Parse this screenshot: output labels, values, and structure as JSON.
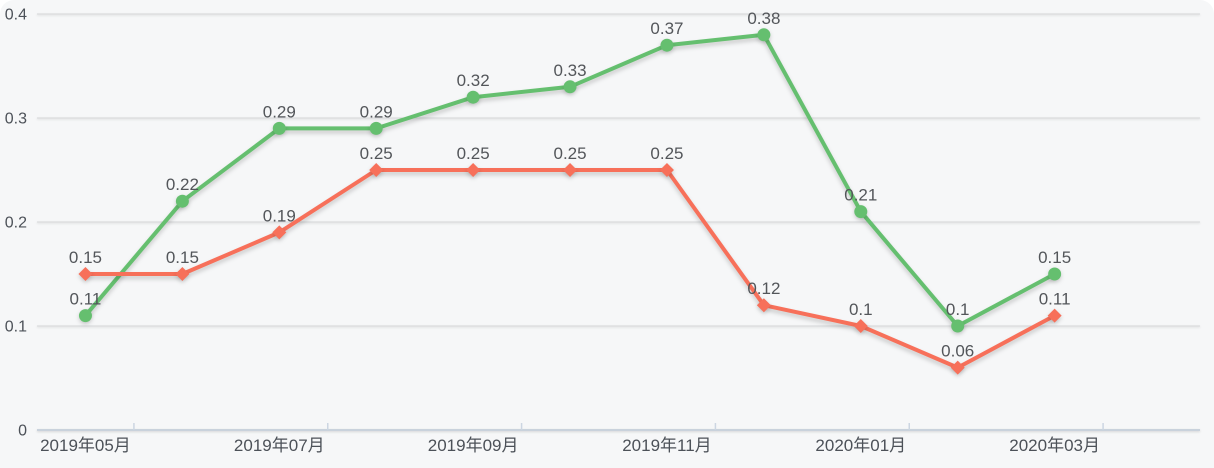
{
  "chart_data": {
    "type": "line",
    "title": "",
    "legend": "none",
    "grid": true,
    "data_labels": true,
    "categories": [
      "2019年05月",
      "2019年06月",
      "2019年07月",
      "2019年08月",
      "2019年09月",
      "2019年10月",
      "2019年11月",
      "2019年12月",
      "2020年01月",
      "2020年02月",
      "2020年03月"
    ],
    "x_axis": {
      "visible_tick_labels": [
        "2019年05月",
        "2019年07月",
        "2019年09月",
        "2019年11月",
        "2020年01月",
        "2020年03月"
      ],
      "label_interval": 2
    },
    "y_axis": {
      "min": 0,
      "max": 0.4,
      "tick_labels": [
        "0",
        "0.1",
        "0.2",
        "0.3",
        "0.4"
      ]
    },
    "series": [
      {
        "name": "green-series",
        "color": "#65bf6f",
        "marker": "circle",
        "values": [
          0.11,
          0.22,
          0.29,
          0.29,
          0.32,
          0.33,
          0.37,
          0.38,
          0.21,
          0.1,
          0.15
        ]
      },
      {
        "name": "red-series",
        "color": "#f7705a",
        "marker": "diamond",
        "values": [
          0.15,
          0.15,
          0.19,
          0.25,
          0.25,
          0.25,
          0.25,
          0.12,
          0.1,
          0.06,
          0.11
        ]
      }
    ],
    "colors": {
      "background": "#f6f7f8",
      "gridline": "#d5d7d9",
      "axis_line": "#c9d2dc",
      "tick": "#ccd6e2",
      "value_label_text": "#53565a",
      "axis_label_text": "#4c5158"
    }
  }
}
